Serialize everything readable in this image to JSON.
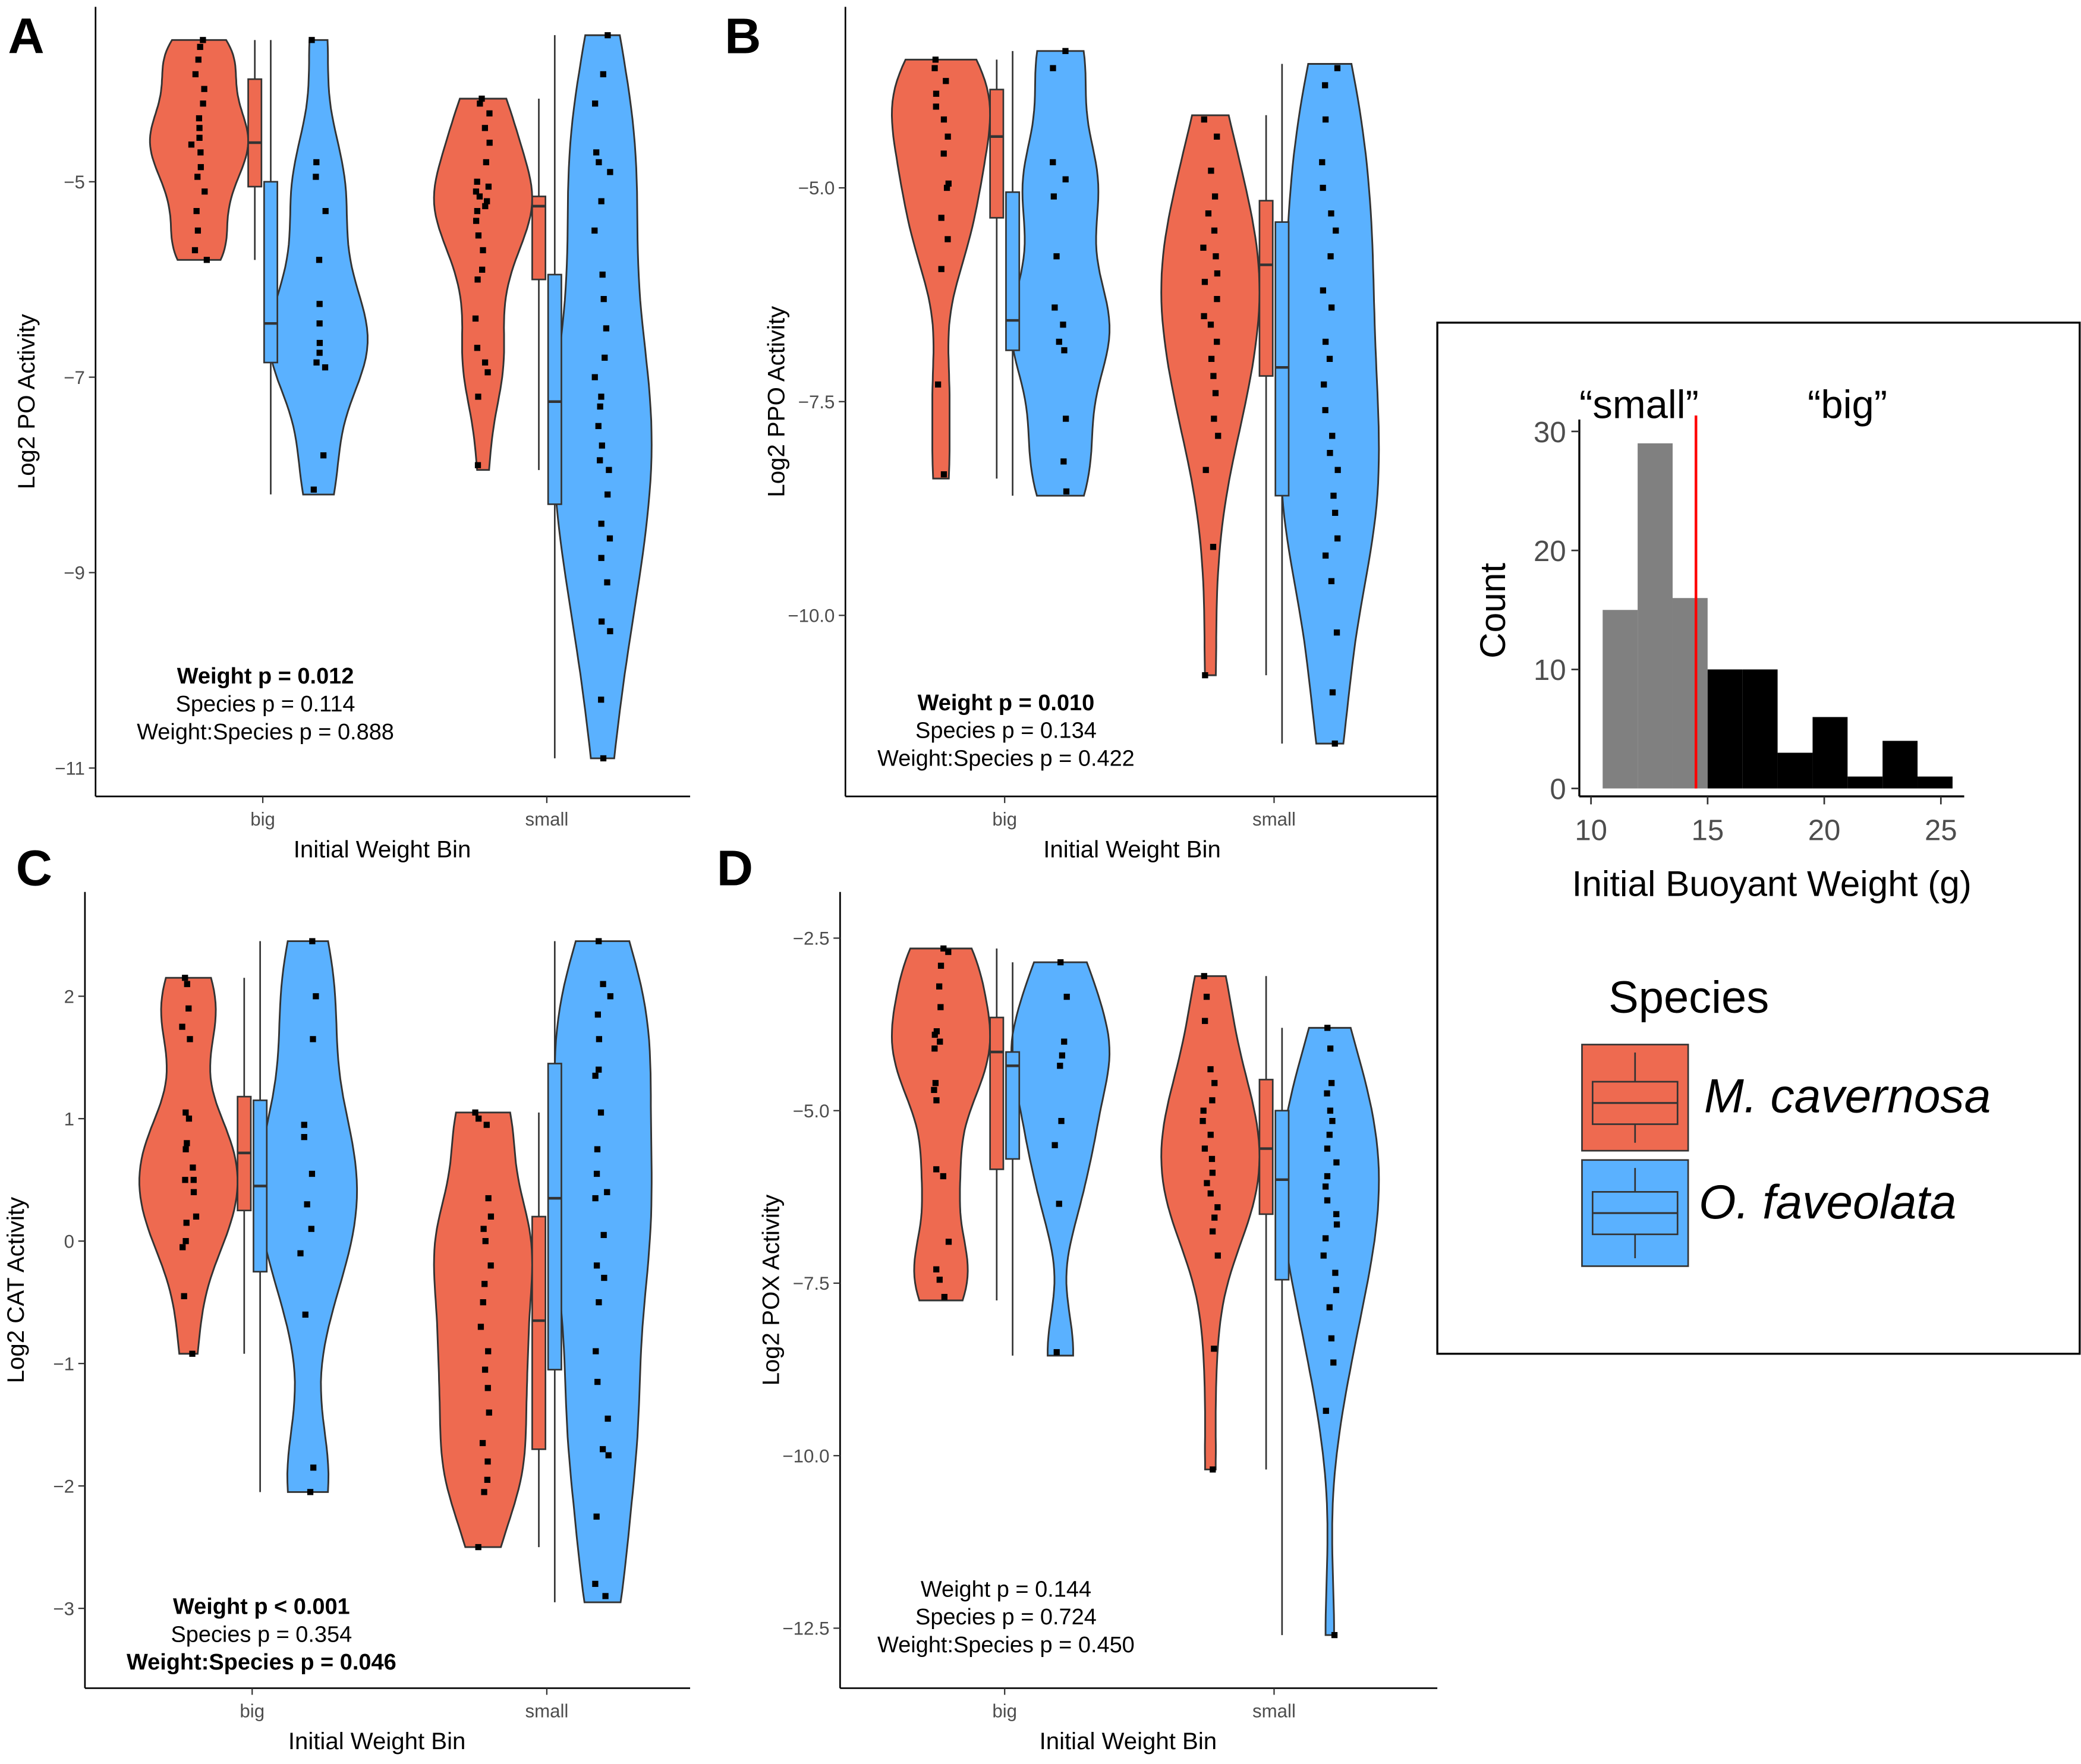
{
  "colors": {
    "mcav": "#EE6A50",
    "ofav": "#5AB1FF",
    "black": "#000000",
    "gray": "#808080",
    "red_line": "#FF0000"
  },
  "chart_data": [
    {
      "panel": "A",
      "type": "violin",
      "ylabel": "Log2 PO Activity",
      "xlabel": "Initial Weight Bin",
      "categories": [
        "big",
        "small"
      ],
      "ylim": [
        -11.1,
        -3.4
      ],
      "yticks": [
        -11,
        -9,
        -7,
        -5
      ],
      "series": [
        {
          "name": "M. cavernosa",
          "group": "big",
          "min": -5.8,
          "max": -3.55,
          "q1": -5.05,
          "median": -4.6,
          "q3": -3.95,
          "points": [
            -3.55,
            -3.62,
            -3.75,
            -3.9,
            -4.05,
            -4.2,
            -4.35,
            -4.45,
            -4.55,
            -4.62,
            -4.7,
            -4.85,
            -4.95,
            -5.1,
            -5.3,
            -5.5,
            -5.7,
            -5.8
          ]
        },
        {
          "name": "O. faveolata",
          "group": "big",
          "min": -8.2,
          "max": -3.55,
          "q1": -6.85,
          "median": -6.45,
          "q3": -5.0,
          "points": [
            -3.55,
            -4.8,
            -4.95,
            -5.3,
            -5.8,
            -6.25,
            -6.45,
            -6.65,
            -6.75,
            -6.85,
            -6.9,
            -7.8,
            -8.15
          ]
        },
        {
          "name": "M. cavernosa",
          "group": "small",
          "min": -7.95,
          "max": -4.15,
          "q1": -6.0,
          "median": -5.25,
          "q3": -5.15,
          "points": [
            -4.15,
            -4.2,
            -4.3,
            -4.45,
            -4.6,
            -4.8,
            -5.0,
            -5.05,
            -5.1,
            -5.15,
            -5.2,
            -5.25,
            -5.3,
            -5.4,
            -5.55,
            -5.7,
            -5.9,
            -6.0,
            -6.4,
            -6.7,
            -6.85,
            -6.95,
            -7.2,
            -7.9
          ]
        },
        {
          "name": "O. faveolata",
          "group": "small",
          "min": -10.9,
          "max": -3.5,
          "q1": -8.3,
          "median": -7.25,
          "q3": -5.95,
          "points": [
            -3.5,
            -3.9,
            -4.2,
            -4.7,
            -4.8,
            -4.9,
            -5.2,
            -5.5,
            -5.95,
            -6.2,
            -6.5,
            -6.8,
            -7.0,
            -7.2,
            -7.3,
            -7.5,
            -7.7,
            -7.85,
            -7.95,
            -8.2,
            -8.5,
            -8.65,
            -8.85,
            -9.1,
            -9.5,
            -9.6,
            -10.3,
            -10.9
          ]
        }
      ],
      "stats": [
        {
          "text": "Weight p = 0.012",
          "bold": true
        },
        {
          "text": "Species p = 0.114",
          "bold": false
        },
        {
          "text": "Weight:Species p = 0.888",
          "bold": false
        }
      ]
    },
    {
      "panel": "B",
      "type": "violin",
      "ylabel": "Log2 PPO Activity",
      "xlabel": "Initial Weight Bin",
      "categories": [
        "big",
        "small"
      ],
      "ylim": [
        -11.9,
        -3.1
      ],
      "yticks": [
        -10.0,
        -7.5,
        -5.0
      ],
      "series": [
        {
          "name": "M. cavernosa",
          "group": "big",
          "min": -8.4,
          "max": -3.5,
          "q1": -5.35,
          "median": -4.4,
          "q3": -3.85,
          "points": [
            -3.5,
            -3.6,
            -3.75,
            -3.9,
            -4.05,
            -4.2,
            -4.4,
            -4.6,
            -4.95,
            -5.0,
            -5.35,
            -5.6,
            -5.95,
            -7.3,
            -8.35
          ]
        },
        {
          "name": "O. faveolata",
          "group": "big",
          "min": -8.6,
          "max": -3.4,
          "q1": -6.9,
          "median": -6.55,
          "q3": -5.05,
          "points": [
            -3.4,
            -3.6,
            -4.7,
            -4.9,
            -5.1,
            -5.8,
            -6.4,
            -6.6,
            -6.8,
            -6.9,
            -7.7,
            -8.2,
            -8.55
          ]
        },
        {
          "name": "M. cavernosa",
          "group": "small",
          "min": -10.7,
          "max": -4.15,
          "q1": -7.2,
          "median": -5.9,
          "q3": -5.15,
          "points": [
            -4.2,
            -4.4,
            -4.8,
            -5.1,
            -5.3,
            -5.5,
            -5.7,
            -5.8,
            -6.0,
            -6.1,
            -6.3,
            -6.5,
            -6.6,
            -6.8,
            -7.0,
            -7.2,
            -7.4,
            -7.7,
            -7.9,
            -8.3,
            -9.2,
            -10.7
          ]
        },
        {
          "name": "O. faveolata",
          "group": "small",
          "min": -11.5,
          "max": -3.55,
          "q1": -8.6,
          "median": -7.1,
          "q3": -5.4,
          "points": [
            -3.6,
            -3.8,
            -4.2,
            -4.7,
            -5.0,
            -5.3,
            -5.5,
            -5.8,
            -6.2,
            -6.4,
            -6.8,
            -7.0,
            -7.3,
            -7.6,
            -7.9,
            -8.1,
            -8.3,
            -8.6,
            -8.8,
            -9.1,
            -9.3,
            -9.6,
            -10.2,
            -10.9,
            -11.5
          ]
        }
      ],
      "stats": [
        {
          "text": "Weight p = 0.010",
          "bold": true
        },
        {
          "text": "Species p = 0.134",
          "bold": false
        },
        {
          "text": "Weight:Species p = 0.422",
          "bold": false
        }
      ]
    },
    {
      "panel": "C",
      "type": "violin",
      "ylabel": "Log2 CAT Activity",
      "xlabel": "Initial Weight Bin",
      "categories": [
        "big",
        "small"
      ],
      "ylim": [
        -3.5,
        2.7
      ],
      "yticks": [
        -3,
        -2,
        -1,
        0,
        1,
        2
      ],
      "series": [
        {
          "name": "M. cavernosa",
          "group": "big",
          "min": -0.92,
          "max": 2.15,
          "q1": 0.25,
          "median": 0.72,
          "q3": 1.18,
          "points": [
            2.15,
            2.1,
            1.9,
            1.75,
            1.65,
            1.05,
            1.0,
            0.8,
            0.75,
            0.6,
            0.5,
            0.5,
            0.4,
            0.2,
            0.15,
            0.0,
            -0.05,
            -0.45,
            -0.92
          ]
        },
        {
          "name": "O. faveolata",
          "group": "big",
          "min": -2.05,
          "max": 2.45,
          "q1": -0.25,
          "median": 0.45,
          "q3": 1.15,
          "points": [
            2.45,
            2.0,
            1.65,
            0.95,
            0.85,
            0.55,
            0.3,
            0.1,
            -0.1,
            -0.6,
            -1.85,
            -2.05
          ]
        },
        {
          "name": "M. cavernosa",
          "group": "small",
          "min": -2.5,
          "max": 1.05,
          "q1": -1.7,
          "median": -0.65,
          "q3": 0.2,
          "points": [
            1.05,
            1.0,
            0.95,
            0.35,
            0.2,
            0.1,
            0.0,
            -0.2,
            -0.35,
            -0.5,
            -0.7,
            -0.9,
            -1.05,
            -1.2,
            -1.4,
            -1.65,
            -1.8,
            -1.95,
            -2.05,
            -2.5
          ]
        },
        {
          "name": "O. faveolata",
          "group": "small",
          "min": -2.95,
          "max": 2.45,
          "q1": -1.05,
          "median": 0.35,
          "q3": 1.45,
          "points": [
            2.45,
            2.1,
            2.0,
            1.85,
            1.65,
            1.4,
            1.35,
            1.05,
            0.75,
            0.55,
            0.4,
            0.35,
            0.05,
            -0.2,
            -0.3,
            -0.5,
            -0.9,
            -1.15,
            -1.45,
            -1.7,
            -1.75,
            -2.25,
            -2.8,
            -2.9
          ]
        }
      ],
      "stats": [
        {
          "text": "Weight p < 0.001",
          "bold": true
        },
        {
          "text": "Species p = 0.354",
          "bold": false
        },
        {
          "text": "Weight:Species p = 0.046",
          "bold": true
        }
      ]
    },
    {
      "panel": "D",
      "type": "violin",
      "ylabel": "Log2 POX Activity",
      "xlabel": "Initial Weight Bin",
      "categories": [
        "big",
        "small"
      ],
      "ylim": [
        -13.1,
        -2.1
      ],
      "yticks": [
        -12.5,
        -10.0,
        -7.5,
        -5.0,
        -2.5
      ],
      "series": [
        {
          "name": "M. cavernosa",
          "group": "big",
          "min": -7.75,
          "max": -2.65,
          "q1": -5.85,
          "median": -4.15,
          "q3": -3.65,
          "points": [
            -2.65,
            -2.7,
            -2.9,
            -3.2,
            -3.5,
            -3.85,
            -3.9,
            -4.0,
            -4.1,
            -4.6,
            -4.7,
            -4.85,
            -5.85,
            -5.95,
            -6.9,
            -7.3,
            -7.45,
            -7.7
          ]
        },
        {
          "name": "O. faveolata",
          "group": "big",
          "min": -8.55,
          "max": -2.85,
          "q1": -5.7,
          "median": -4.35,
          "q3": -4.15,
          "points": [
            -2.85,
            -3.35,
            -4.0,
            -4.2,
            -4.35,
            -5.15,
            -5.5,
            -6.35,
            -8.5
          ]
        },
        {
          "name": "M. cavernosa",
          "group": "small",
          "min": -10.2,
          "max": -3.05,
          "q1": -6.5,
          "median": -5.55,
          "q3": -4.55,
          "points": [
            -3.05,
            -3.35,
            -3.7,
            -4.4,
            -4.6,
            -4.85,
            -5.0,
            -5.15,
            -5.35,
            -5.55,
            -5.7,
            -5.9,
            -6.05,
            -6.2,
            -6.4,
            -6.55,
            -6.75,
            -7.1,
            -8.45,
            -10.2
          ]
        },
        {
          "name": "O. faveolata",
          "group": "small",
          "min": -12.6,
          "max": -3.8,
          "q1": -7.45,
          "median": -6.0,
          "q3": -5.0,
          "points": [
            -3.8,
            -4.1,
            -4.6,
            -4.75,
            -5.0,
            -5.15,
            -5.35,
            -5.55,
            -5.75,
            -5.95,
            -6.1,
            -6.3,
            -6.5,
            -6.65,
            -6.85,
            -7.1,
            -7.35,
            -7.6,
            -7.85,
            -8.3,
            -8.65,
            -9.35,
            -12.6
          ]
        }
      ],
      "stats": [
        {
          "text": "Weight p = 0.144",
          "bold": false
        },
        {
          "text": "Species p = 0.724",
          "bold": false
        },
        {
          "text": "Weight:Species p = 0.450",
          "bold": false
        }
      ]
    },
    {
      "panel": "inset",
      "type": "bar",
      "xlabel": "Initial Buoyant Weight (g)",
      "ylabel": "Count",
      "xlim": [
        9.5,
        26
      ],
      "ylim": [
        0,
        31
      ],
      "xticks": [
        10,
        15,
        20,
        25
      ],
      "yticks": [
        0,
        10,
        20,
        30
      ],
      "bins": [
        {
          "x0": 10.5,
          "x1": 12,
          "count": 15,
          "group": "small"
        },
        {
          "x0": 12,
          "x1": 13.5,
          "count": 29,
          "group": "small"
        },
        {
          "x0": 13.5,
          "x1": 15,
          "count": 16,
          "group": "small"
        },
        {
          "x0": 15,
          "x1": 16.5,
          "count": 10,
          "group": "big"
        },
        {
          "x0": 16.5,
          "x1": 18,
          "count": 10,
          "group": "big"
        },
        {
          "x0": 18,
          "x1": 19.5,
          "count": 3,
          "group": "big"
        },
        {
          "x0": 19.5,
          "x1": 21,
          "count": 6,
          "group": "big"
        },
        {
          "x0": 21,
          "x1": 22.5,
          "count": 1,
          "group": "big"
        },
        {
          "x0": 22.5,
          "x1": 24,
          "count": 4,
          "group": "big"
        },
        {
          "x0": 24,
          "x1": 25.5,
          "count": 1,
          "group": "big"
        }
      ],
      "cutoff": 14.5,
      "annotations": [
        "“small”",
        "“big”"
      ]
    }
  ],
  "legend": {
    "title": "Species",
    "items": [
      {
        "label": "M. cavernosa",
        "color": "#EE6A50"
      },
      {
        "label": "O. faveolata",
        "color": "#5AB1FF"
      }
    ]
  }
}
